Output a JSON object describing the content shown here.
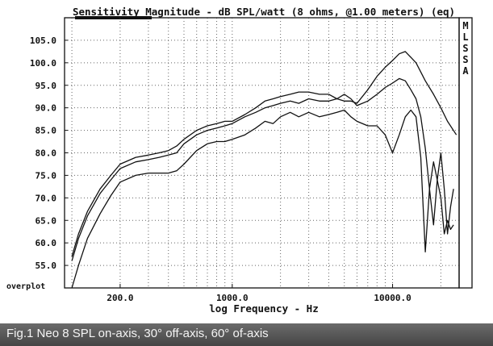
{
  "chart_data": {
    "type": "line",
    "title": "Sensitivity Magnitude - dB SPL/watt (8 ohms, @1.00 meters) (eq)",
    "xlabel": "log Frequency - Hz",
    "ylabel": "",
    "xscale": "log",
    "xlim": [
      90,
      26000
    ],
    "ylim": [
      50,
      110
    ],
    "x_ticks": [
      {
        "value": 200,
        "label": "200.0"
      },
      {
        "value": 1000,
        "label": "1000.0"
      },
      {
        "value": 10000,
        "label": "10000.0"
      }
    ],
    "y_ticks": [
      {
        "value": 55,
        "label": "55.0"
      },
      {
        "value": 60,
        "label": "60.0"
      },
      {
        "value": 65,
        "label": "65.0"
      },
      {
        "value": 70,
        "label": "70.0"
      },
      {
        "value": 75,
        "label": "75.0"
      },
      {
        "value": 80,
        "label": "80.0"
      },
      {
        "value": 85,
        "label": "85.0"
      },
      {
        "value": 90,
        "label": "90.0"
      },
      {
        "value": 95,
        "label": "95.0"
      },
      {
        "value": 100,
        "label": "100.0"
      },
      {
        "value": 105,
        "label": "105.0"
      }
    ],
    "grid": true,
    "side_label": "MLSSA",
    "bottom_left_label": "overplot",
    "series": [
      {
        "x": [
          100,
          110,
          125,
          150,
          175,
          200,
          250,
          300,
          350,
          400,
          450,
          500,
          600,
          700,
          800,
          900,
          1000,
          1200,
          1400,
          1600,
          1800,
          2000,
          2300,
          2600,
          3000,
          3500,
          4000,
          4500,
          5000,
          5500,
          6000,
          7000,
          8000,
          9000,
          10000,
          11000,
          12000,
          14000,
          16000,
          18000,
          20000,
          22000,
          25000
        ],
        "y": [
          57,
          62,
          67,
          72,
          75,
          77.5,
          79,
          79.5,
          80,
          80.5,
          81.5,
          83,
          85,
          86,
          86.5,
          87,
          87,
          88.5,
          90,
          91.5,
          92,
          92.5,
          93,
          93.5,
          93.5,
          93,
          93,
          92,
          91.5,
          91.5,
          91,
          94,
          97,
          99,
          100.5,
          102,
          102.5,
          100,
          96,
          93,
          90,
          87,
          84
        ]
      },
      {
        "x": [
          100,
          110,
          125,
          150,
          175,
          200,
          250,
          300,
          350,
          400,
          450,
          500,
          600,
          700,
          800,
          900,
          1000,
          1200,
          1400,
          1600,
          1800,
          2000,
          2300,
          2600,
          3000,
          3500,
          4000,
          4500,
          5000,
          5500,
          6000,
          7000,
          8000,
          9000,
          10000,
          11000,
          12000,
          13000,
          14000,
          15000,
          16000,
          17000,
          18000,
          19000,
          20000,
          21000,
          22000,
          23000,
          24000
        ],
        "y": [
          56,
          61,
          66,
          71,
          74,
          76.5,
          78,
          78.5,
          79,
          79.5,
          80,
          82,
          84,
          85,
          85.5,
          86,
          86.5,
          88,
          89,
          90,
          90.5,
          91,
          91.5,
          91,
          92,
          91.5,
          91.5,
          92,
          93,
          92,
          90.5,
          91.5,
          93,
          94.5,
          95.5,
          96.5,
          96,
          94,
          92,
          88,
          81,
          72,
          64,
          74,
          80,
          72,
          62,
          68,
          72
        ]
      },
      {
        "x": [
          100,
          110,
          125,
          150,
          175,
          200,
          250,
          300,
          350,
          400,
          450,
          500,
          600,
          700,
          800,
          900,
          1000,
          1200,
          1400,
          1600,
          1800,
          2000,
          2300,
          2600,
          3000,
          3500,
          4000,
          4500,
          5000,
          5500,
          6000,
          7000,
          8000,
          9000,
          10000,
          11000,
          12000,
          13000,
          14000,
          15000,
          16000,
          17000,
          18000,
          19000,
          20000,
          21000,
          22000,
          23000,
          24000
        ],
        "y": [
          50,
          55,
          61,
          66.5,
          70.5,
          73.5,
          75,
          75.5,
          75.5,
          75.5,
          76,
          77.5,
          80.5,
          82,
          82.5,
          82.5,
          83,
          84,
          85.5,
          87,
          86.5,
          88,
          89,
          88,
          89,
          88,
          88.5,
          89,
          89.5,
          88,
          87,
          86,
          86,
          84,
          80,
          84,
          88,
          89.5,
          88,
          79,
          58,
          72,
          78,
          74,
          70,
          62,
          65,
          63,
          64
        ]
      }
    ]
  },
  "caption": "Fig.1 Neo 8 SPL on-axis, 30° off-axis, 60° of-axis",
  "colors": {
    "ink": "#111111",
    "caption_bg": "#555555",
    "caption_text": "#f4f4f4"
  }
}
